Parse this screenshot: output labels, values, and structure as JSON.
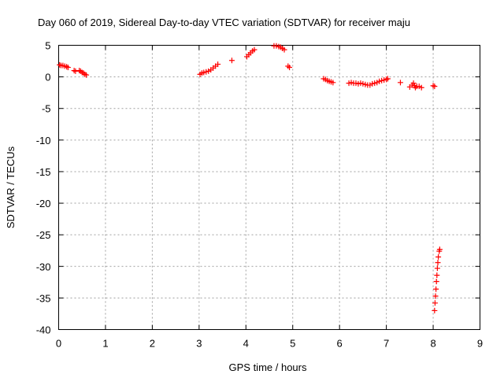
{
  "chart_data": {
    "type": "scatter",
    "title": "Day 060 of 2019, Sidereal Day-to-day VTEC variation (SDTVAR) for receiver maju",
    "xlabel": "GPS time / hours",
    "ylabel": "SDTVAR / TECUs",
    "xlim": [
      0,
      9
    ],
    "ylim": [
      -40,
      5
    ],
    "xticks": [
      0,
      1,
      2,
      3,
      4,
      5,
      6,
      7,
      8,
      9
    ],
    "yticks": [
      5,
      0,
      -5,
      -10,
      -15,
      -20,
      -25,
      -30,
      -35,
      -40
    ],
    "grid": true,
    "marker": "+",
    "marker_color": "#ff0000",
    "series": [
      {
        "name": "SDTVAR",
        "points": [
          [
            0.02,
            1.9
          ],
          [
            0.05,
            1.8
          ],
          [
            0.09,
            1.8
          ],
          [
            0.13,
            1.7
          ],
          [
            0.17,
            1.6
          ],
          [
            0.2,
            1.5
          ],
          [
            0.33,
            1.0
          ],
          [
            0.36,
            0.9
          ],
          [
            0.44,
            1.0
          ],
          [
            0.47,
            0.9
          ],
          [
            0.5,
            0.7
          ],
          [
            0.53,
            0.6
          ],
          [
            0.56,
            0.4
          ],
          [
            0.59,
            0.3
          ],
          [
            3.02,
            0.4
          ],
          [
            3.06,
            0.6
          ],
          [
            3.1,
            0.7
          ],
          [
            3.15,
            0.8
          ],
          [
            3.2,
            0.9
          ],
          [
            3.25,
            1.1
          ],
          [
            3.3,
            1.4
          ],
          [
            3.35,
            1.7
          ],
          [
            3.4,
            2.0
          ],
          [
            3.7,
            2.6
          ],
          [
            4.02,
            3.2
          ],
          [
            4.06,
            3.5
          ],
          [
            4.1,
            3.8
          ],
          [
            4.14,
            4.1
          ],
          [
            4.18,
            4.3
          ],
          [
            4.6,
            4.9
          ],
          [
            4.65,
            4.9
          ],
          [
            4.7,
            4.8
          ],
          [
            4.74,
            4.7
          ],
          [
            4.78,
            4.5
          ],
          [
            4.82,
            4.3
          ],
          [
            4.9,
            1.7
          ],
          [
            4.93,
            1.5
          ],
          [
            5.66,
            -0.3
          ],
          [
            5.7,
            -0.4
          ],
          [
            5.74,
            -0.6
          ],
          [
            5.78,
            -0.7
          ],
          [
            5.82,
            -0.8
          ],
          [
            5.86,
            -0.9
          ],
          [
            6.2,
            -1.0
          ],
          [
            6.25,
            -0.9
          ],
          [
            6.3,
            -1.0
          ],
          [
            6.35,
            -1.0
          ],
          [
            6.4,
            -1.1
          ],
          [
            6.45,
            -1.0
          ],
          [
            6.5,
            -1.1
          ],
          [
            6.55,
            -1.2
          ],
          [
            6.6,
            -1.3
          ],
          [
            6.65,
            -1.3
          ],
          [
            6.7,
            -1.1
          ],
          [
            6.75,
            -1.0
          ],
          [
            6.8,
            -0.9
          ],
          [
            6.85,
            -0.7
          ],
          [
            6.9,
            -0.6
          ],
          [
            6.95,
            -0.5
          ],
          [
            7.0,
            -0.4
          ],
          [
            7.03,
            -0.3
          ],
          [
            7.3,
            -0.9
          ],
          [
            7.5,
            -1.6
          ],
          [
            7.55,
            -1.3
          ],
          [
            7.58,
            -1.0
          ],
          [
            7.6,
            -1.4
          ],
          [
            7.62,
            -1.7
          ],
          [
            7.65,
            -1.5
          ],
          [
            7.7,
            -1.5
          ],
          [
            7.75,
            -1.7
          ],
          [
            8.0,
            -1.4
          ],
          [
            8.03,
            -1.5
          ],
          [
            8.03,
            -37.0
          ],
          [
            8.04,
            -35.8
          ],
          [
            8.05,
            -34.7
          ],
          [
            8.06,
            -33.6
          ],
          [
            8.07,
            -32.4
          ],
          [
            8.08,
            -31.4
          ],
          [
            8.09,
            -30.3
          ],
          [
            8.1,
            -29.4
          ],
          [
            8.11,
            -28.5
          ],
          [
            8.13,
            -27.6
          ],
          [
            8.14,
            -27.3
          ]
        ]
      }
    ]
  }
}
